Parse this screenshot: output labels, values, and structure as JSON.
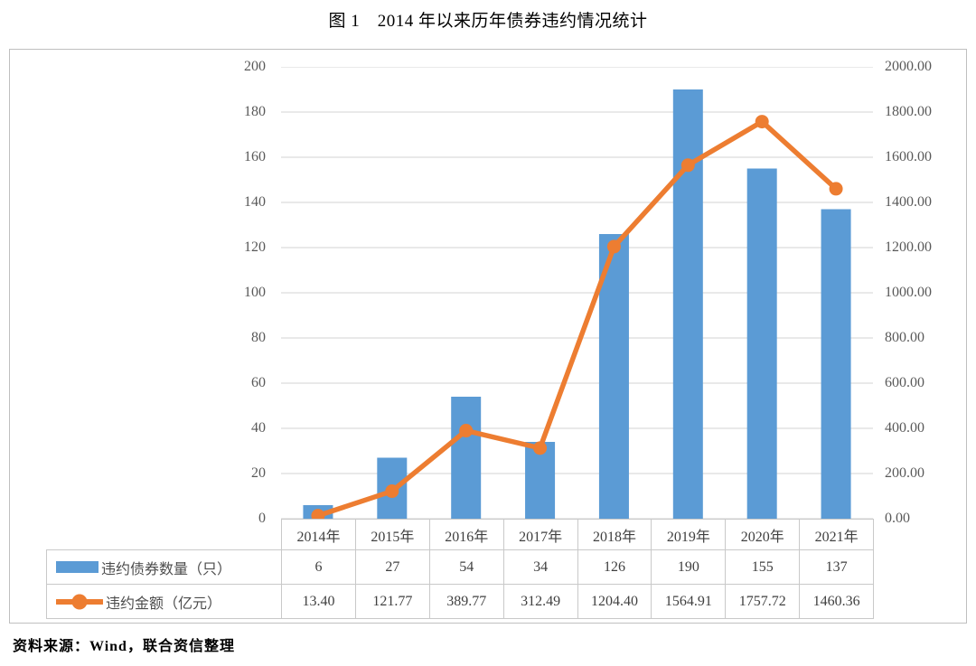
{
  "title": "图 1　2014 年以来历年债券违约情况统计",
  "source_note": "资料来源：Wind，联合资信整理",
  "colors": {
    "bar": "#5b9bd5",
    "line": "#ed7d31",
    "grid": "#e2e2e2",
    "axis_text": "#595959",
    "table_text": "#404040",
    "frame_border": "#bfbfbf"
  },
  "chart_data": {
    "type": "bar",
    "subtype": "bar+line combo, dual axis",
    "title": "图 1　2014 年以来历年债券违约情况统计",
    "categories": [
      "2014年",
      "2015年",
      "2016年",
      "2017年",
      "2018年",
      "2019年",
      "2020年",
      "2021年"
    ],
    "series": [
      {
        "name": "违约债券数量（只）",
        "type": "bar",
        "axis": "left",
        "values": [
          6,
          27,
          54,
          34,
          126,
          190,
          155,
          137
        ],
        "labels": [
          "6",
          "27",
          "54",
          "34",
          "126",
          "190",
          "155",
          "137"
        ]
      },
      {
        "name": "违约金额（亿元）",
        "type": "line",
        "axis": "right",
        "values": [
          13.4,
          121.77,
          389.77,
          312.49,
          1204.4,
          1564.91,
          1757.72,
          1460.36
        ],
        "labels": [
          "13.40",
          "121.77",
          "389.77",
          "312.49",
          "1204.40",
          "1564.91",
          "1757.72",
          "1460.36"
        ]
      }
    ],
    "left_axis": {
      "min": 0,
      "max": 200,
      "step": 20,
      "ticks": [
        "0",
        "20",
        "40",
        "60",
        "80",
        "100",
        "120",
        "140",
        "160",
        "180",
        "200"
      ]
    },
    "right_axis": {
      "min": 0,
      "max": 2000,
      "step": 200,
      "ticks": [
        "0.00",
        "200.00",
        "400.00",
        "600.00",
        "800.00",
        "1000.00",
        "1200.00",
        "1400.00",
        "1600.00",
        "1800.00",
        "2000.00"
      ]
    },
    "grid": true,
    "legend_position": "bottom-table"
  }
}
